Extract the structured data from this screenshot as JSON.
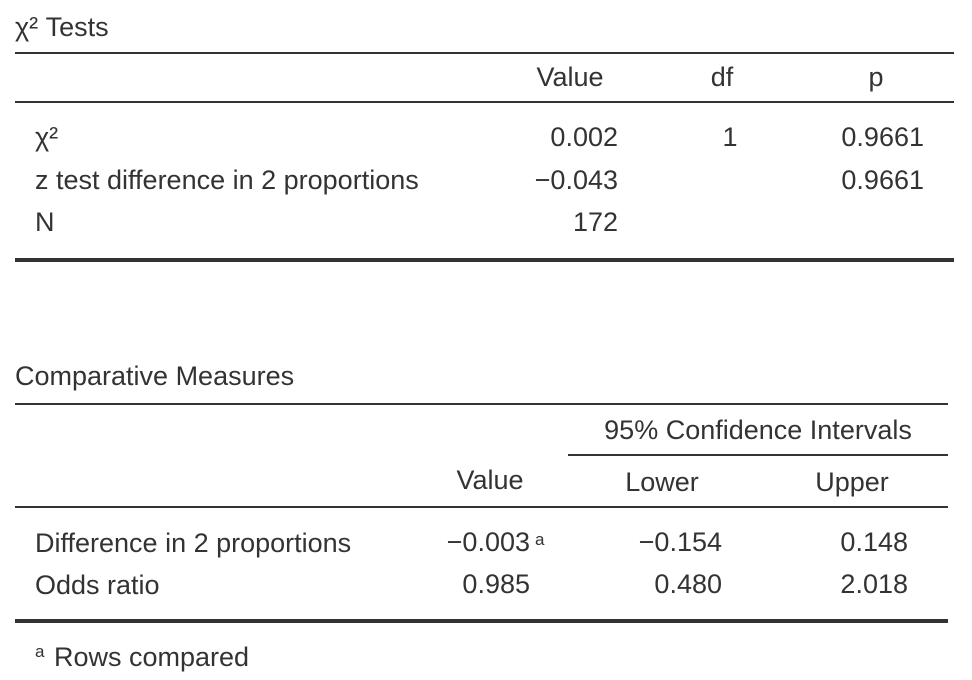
{
  "chi_tests": {
    "title": "χ² Tests",
    "columns": [
      "Value",
      "df",
      "p"
    ],
    "rows": [
      {
        "label": "χ²",
        "value": "0.002",
        "df": "1",
        "p": "0.9661"
      },
      {
        "label": "z test difference in 2 proportions",
        "value": "−0.043",
        "df": "",
        "p": "0.9661"
      },
      {
        "label": "N",
        "value": "172",
        "df": "",
        "p": ""
      }
    ]
  },
  "comparative": {
    "title": "Comparative Measures",
    "ci_header": "95% Confidence Intervals",
    "columns": [
      "Value",
      "Lower",
      "Upper"
    ],
    "rows": [
      {
        "label": "Difference in 2 proportions",
        "value": "−0.003",
        "footnote": "a",
        "lower": "−0.154",
        "upper": "0.148"
      },
      {
        "label": "Odds ratio",
        "value": "0.985",
        "footnote": "",
        "lower": "0.480",
        "upper": "2.018"
      }
    ],
    "footnote": {
      "marker": "a",
      "text": "Rows compared"
    }
  }
}
